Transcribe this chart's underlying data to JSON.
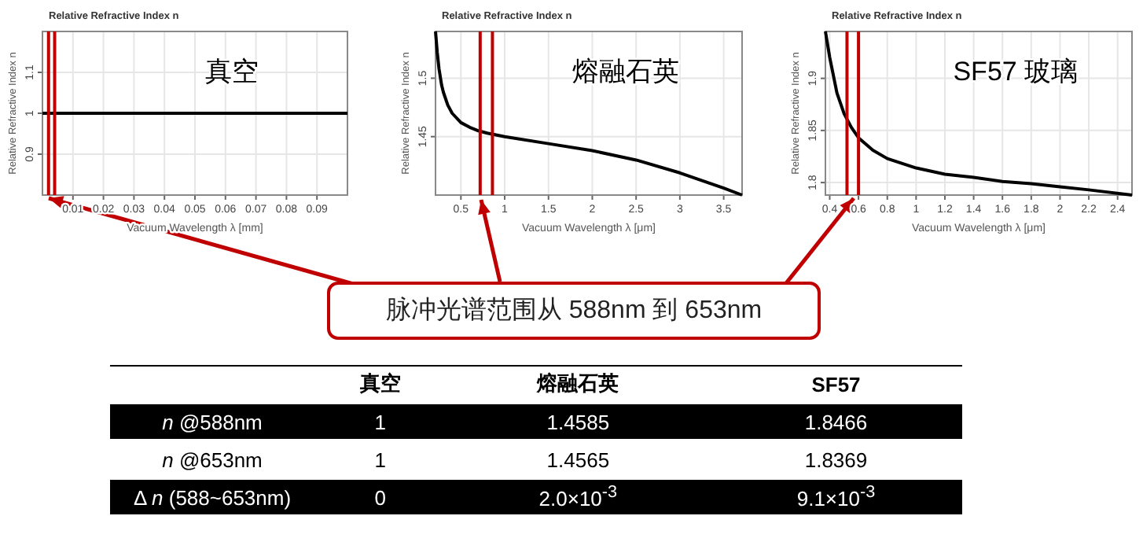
{
  "chart_data": [
    {
      "type": "line",
      "title": "Relative Refractive Index n",
      "ylabel": "Relative Refractive Index n",
      "xlabel": "Vacuum Wavelength λ [mm]",
      "annotations": [
        "真空"
      ],
      "xlim": [
        0,
        0.1
      ],
      "ylim": [
        0.8,
        1.2
      ],
      "xticks": [
        0.01,
        0.02,
        0.03,
        0.04,
        0.05,
        0.06,
        0.07,
        0.08,
        0.09
      ],
      "yticks": [
        0.9,
        1,
        1.1
      ],
      "grid": true,
      "series": [
        {
          "color": "#000000",
          "x": [
            0,
            0.1
          ],
          "values": [
            1,
            1
          ]
        }
      ],
      "ref_lines": [
        {
          "axis": "x",
          "value": 0.002,
          "color": "#c00000"
        },
        {
          "axis": "x",
          "value": 0.004,
          "color": "#c00000"
        }
      ]
    },
    {
      "type": "line",
      "title": "Relative Refractive Index n",
      "ylabel": "Relative Refractive Index n",
      "xlabel": "Vacuum Wavelength λ [μm]",
      "annotations": [
        "熔融石英"
      ],
      "xlim": [
        0.21,
        3.71
      ],
      "ylim": [
        1.4,
        1.54
      ],
      "xticks": [
        0.5,
        1,
        1.5,
        2,
        2.5,
        3,
        3.5
      ],
      "yticks": [
        1.45,
        1.5
      ],
      "grid": true,
      "series": [
        {
          "color": "#000000",
          "x": [
            0.21,
            0.23,
            0.25,
            0.28,
            0.3,
            0.35,
            0.4,
            0.5,
            0.6,
            0.7,
            0.8,
            1.0,
            1.5,
            2.0,
            2.5,
            3.0,
            3.5,
            3.71
          ],
          "values": [
            1.54,
            1.522,
            1.508,
            1.494,
            1.488,
            1.477,
            1.47,
            1.462,
            1.458,
            1.455,
            1.453,
            1.45,
            1.444,
            1.438,
            1.43,
            1.419,
            1.406,
            1.4
          ]
        }
      ],
      "ref_lines": [
        {
          "axis": "x",
          "value": 0.72,
          "color": "#c00000"
        },
        {
          "axis": "x",
          "value": 0.86,
          "color": "#c00000"
        }
      ]
    },
    {
      "type": "line",
      "title": "Relative Refractive Index n",
      "ylabel": "Relative Refractive Index n",
      "xlabel": "Vacuum Wavelength λ [μm]",
      "annotations": [
        "SF57 玻璃"
      ],
      "xlim": [
        0.37,
        2.5
      ],
      "ylim": [
        1.788,
        1.945
      ],
      "xticks": [
        0.4,
        0.6,
        0.8,
        1,
        1.2,
        1.4,
        1.6,
        1.8,
        2,
        2.2,
        2.4
      ],
      "yticks": [
        1.8,
        1.85,
        1.9
      ],
      "grid": true,
      "series": [
        {
          "color": "#000000",
          "x": [
            0.37,
            0.4,
            0.45,
            0.5,
            0.55,
            0.6,
            0.7,
            0.8,
            1.0,
            1.2,
            1.4,
            1.6,
            1.8,
            2.0,
            2.2,
            2.5
          ],
          "values": [
            1.945,
            1.92,
            1.886,
            1.866,
            1.853,
            1.843,
            1.831,
            1.823,
            1.814,
            1.808,
            1.805,
            1.801,
            1.799,
            1.796,
            1.793,
            1.788
          ]
        }
      ],
      "ref_lines": [
        {
          "axis": "x",
          "value": 0.52,
          "color": "#c00000"
        },
        {
          "axis": "x",
          "value": 0.6,
          "color": "#c00000"
        }
      ]
    },
    {
      "type": "other",
      "annotations": [
        "脉冲光谱范围从 588nm 到 653nm"
      ],
      "categories": [
        "真空",
        "熔融石英",
        "SF57"
      ],
      "y_categories": [
        "*n* @588nm",
        "*n* @653nm",
        "Δ *n* (588~653nm)"
      ],
      "cell_labels": [
        [
          "1",
          "1.4585",
          "1.8466"
        ],
        [
          "1",
          "1.4565",
          "1.8369"
        ],
        [
          "0",
          "2.0×10$^{-3}$",
          "9.1×10$^{-3}$"
        ]
      ]
    }
  ]
}
